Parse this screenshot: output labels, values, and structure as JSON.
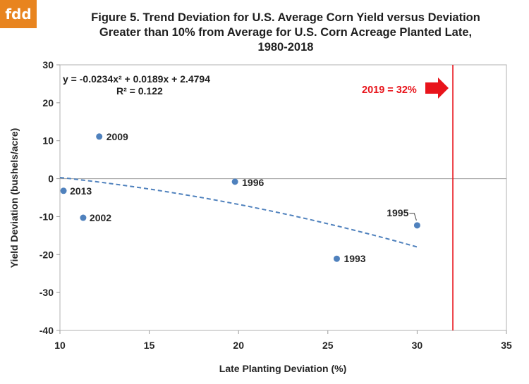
{
  "logo": {
    "text": "fdd",
    "bg_color": "#e8841f"
  },
  "chart_data": {
    "type": "scatter",
    "title_lines": [
      "Figure 5. Trend Deviation for U.S. Average Corn Yield  versus Deviation",
      "Greater than 10% from Average for U.S. Corn Acreage Planted Late,",
      "1980-2018"
    ],
    "xlabel": "Late Planting Deviation (%)",
    "ylabel": "Yield Deviation (bushels/acre)",
    "xlim": [
      10,
      35
    ],
    "ylim": [
      -40,
      30
    ],
    "xticks": [
      10,
      15,
      20,
      25,
      30,
      35
    ],
    "yticks": [
      30,
      20,
      10,
      0,
      -10,
      -20,
      -30,
      -40
    ],
    "grid": false,
    "point_color": "#4f81bd",
    "points": [
      {
        "x": 10.2,
        "y": -3.2,
        "label": "2013"
      },
      {
        "x": 11.3,
        "y": -10.3,
        "label": "2002"
      },
      {
        "x": 12.2,
        "y": 11.1,
        "label": "2009"
      },
      {
        "x": 19.8,
        "y": -0.8,
        "label": "1996"
      },
      {
        "x": 25.5,
        "y": -21.1,
        "label": "1993"
      },
      {
        "x": 30.0,
        "y": -12.3,
        "label": "1995"
      }
    ],
    "trendline": {
      "type": "polynomial",
      "coefficients": [
        -0.0234,
        0.0189,
        2.4794
      ],
      "x_range": [
        10,
        30
      ],
      "style": "dashed",
      "color": "#4f81bd",
      "equation_text": "y = -0.0234x² + 0.0189x + 2.4794",
      "r2_text": "R² = 0.122"
    },
    "reference_line": {
      "x": 32,
      "color": "#e8141b",
      "label": "2019 = 32%"
    }
  }
}
